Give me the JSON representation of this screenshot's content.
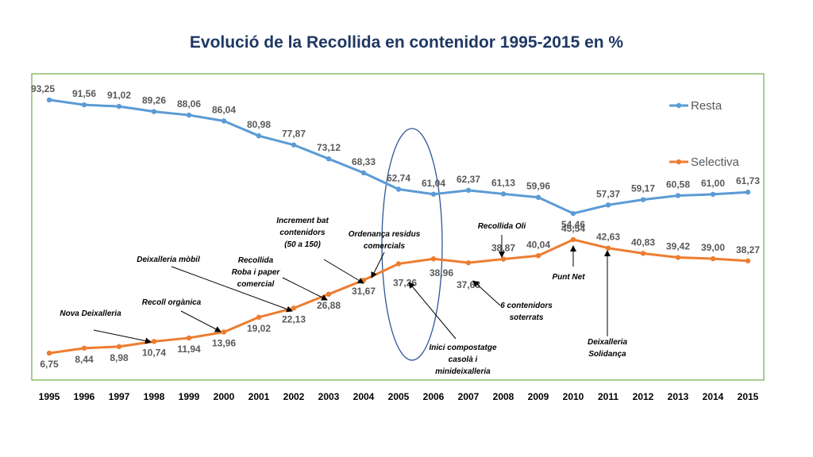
{
  "chart_data": {
    "type": "line",
    "title": "Evolució de la Recollida en contenidor 1995-2015 en %",
    "x": [
      "1995",
      "1996",
      "1997",
      "1998",
      "1999",
      "2000",
      "2001",
      "2002",
      "2003",
      "2004",
      "2005",
      "2006",
      "2007",
      "2008",
      "2009",
      "2010",
      "2011",
      "2012",
      "2013",
      "2014",
      "2015"
    ],
    "series": [
      {
        "name": "Resta",
        "color": "#5b9bd5",
        "values": [
          93.25,
          91.56,
          91.02,
          89.26,
          88.06,
          86.04,
          80.98,
          77.87,
          73.12,
          68.33,
          62.74,
          61.04,
          62.37,
          61.13,
          59.96,
          54.46,
          57.37,
          59.17,
          60.58,
          61.0,
          61.73
        ],
        "labels": [
          "93,25",
          "91,56",
          "91,02",
          "89,26",
          "88,06",
          "86,04",
          "80,98",
          "77,87",
          "73,12",
          "68,33",
          "62,74",
          "61,04",
          "62,37",
          "61,13",
          "59,96",
          "54,46",
          "57,37",
          "59,17",
          "60,58",
          "61,00",
          "61,73"
        ]
      },
      {
        "name": "Selectiva",
        "color": "#ed7d31",
        "values": [
          6.75,
          8.44,
          8.98,
          10.74,
          11.94,
          13.96,
          19.02,
          22.13,
          26.88,
          31.67,
          37.26,
          38.96,
          37.63,
          38.87,
          40.04,
          45.54,
          42.63,
          40.83,
          39.42,
          39.0,
          38.27
        ],
        "labels": [
          "6,75",
          "8,44",
          "8,98",
          "10,74",
          "11,94",
          "13,96",
          "19,02",
          "22,13",
          "26,88",
          "31,67",
          "37,26",
          "38,96",
          "37,63",
          "38,87",
          "40,04",
          "45,54",
          "42,63",
          "40,83",
          "39,42",
          "39,00",
          "38,27"
        ]
      }
    ],
    "legend": "right",
    "grid": false,
    "annotations": [
      {
        "id": "nova-deixalleria",
        "lines": [
          "Nova Deixalleria"
        ],
        "year": "1998"
      },
      {
        "id": "recoll-organica",
        "lines": [
          "Recoll orgànica"
        ],
        "year": "2000"
      },
      {
        "id": "deixalleria-mobil",
        "lines": [
          "Deixalleria mòbil"
        ],
        "year": "2002"
      },
      {
        "id": "recollida-roba",
        "lines": [
          "Recollida",
          "Roba i paper",
          "comercial"
        ],
        "year": "2003"
      },
      {
        "id": "increment-contenidors",
        "lines": [
          "Increment bat",
          "contenidors",
          "(50 a 150)"
        ],
        "year": "2004"
      },
      {
        "id": "ordenanca-residus",
        "lines": [
          "Ordenança residus",
          "comercials"
        ],
        "year": "2005"
      },
      {
        "id": "inici-compostatge",
        "lines": [
          "Inici compostatge",
          "casolà i",
          "minideixalleria"
        ],
        "year": "2006"
      },
      {
        "id": "contenidors-soterrats",
        "lines": [
          "6 contenidors",
          "soterrats"
        ],
        "year": "2007"
      },
      {
        "id": "recollida-oli",
        "lines": [
          "Recollida Oli"
        ],
        "year": "2008"
      },
      {
        "id": "punt-net",
        "lines": [
          "Punt Net"
        ],
        "year": "2010"
      },
      {
        "id": "deixalleria-solidanca",
        "lines": [
          "Deixalleria",
          "Solidança"
        ],
        "year": "2011"
      }
    ]
  }
}
